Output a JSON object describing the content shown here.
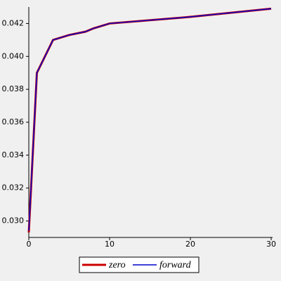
{
  "chart_data": {
    "type": "line",
    "x": [
      0,
      1,
      3,
      5,
      7,
      8,
      10,
      20,
      30
    ],
    "series": [
      {
        "name": "zero",
        "color": "#cc0000",
        "values": [
          0.0293,
          0.039,
          0.041,
          0.0413,
          0.0415,
          0.0417,
          0.042,
          0.0424,
          0.0429
        ]
      },
      {
        "name": "forward",
        "color": "#0000cc",
        "values": [
          0.0294,
          0.039,
          0.041,
          0.0413,
          0.0415,
          0.0417,
          0.042,
          0.0424,
          0.0429
        ]
      }
    ],
    "xlim": [
      0,
      30
    ],
    "xticks": [
      0,
      10,
      20,
      30
    ],
    "ylim": [
      0.029,
      0.043
    ],
    "yticks": [
      {
        "value": 0.03,
        "label": "0.030"
      },
      0.032,
      0.034,
      0.036,
      0.038,
      {
        "value": 0.04,
        "label": "0.040"
      },
      0.042
    ],
    "legend": "bottom"
  }
}
